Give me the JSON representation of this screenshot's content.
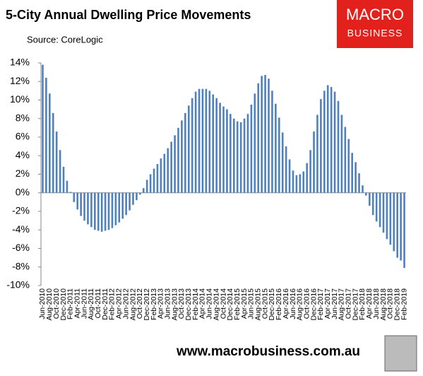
{
  "chart_data": {
    "type": "bar",
    "title": "5-City Annual Dwelling Price Movements",
    "subtitle": "Source: CoreLogic",
    "logo": [
      "MACRO",
      "BUSINESS"
    ],
    "footer": "www.macrobusiness.com.au",
    "color": "#4f81bd",
    "categories": [
      "Jun-2010",
      null,
      "Aug-2010",
      null,
      "Oct-2010",
      null,
      "Dec-2010",
      null,
      "Feb-2011",
      null,
      "Apr-2011",
      null,
      "Jun-2011",
      null,
      "Aug-2011",
      null,
      "Oct-2011",
      null,
      "Dec-2011",
      null,
      "Feb-2012",
      null,
      "Apr-2012",
      null,
      "Jun-2012",
      null,
      "Aug-2012",
      null,
      "Oct-2012",
      null,
      "Dec-2012",
      null,
      "Feb-2013",
      null,
      "Apr-2013",
      null,
      "Jun-2013",
      null,
      "Aug-2013",
      null,
      "Oct-2013",
      null,
      "Dec-2013",
      null,
      "Feb-2014",
      null,
      "Apr-2014",
      null,
      "Jun-2014",
      null,
      "Aug-2014",
      null,
      "Oct-2014",
      null,
      "Dec-2014",
      null,
      "Feb-2015",
      null,
      "Apr-2015",
      null,
      "Jun-2015",
      null,
      "Aug-2015",
      null,
      "Oct-2015",
      null,
      "Dec-2015",
      null,
      "Feb-2016",
      null,
      "Apr-2016",
      null,
      "Jun-2016",
      null,
      "Aug-2016",
      null,
      "Oct-2016",
      null,
      "Dec-2016",
      null,
      "Feb-2017",
      null,
      "Apr-2017",
      null,
      "Jun-2017",
      null,
      "Aug-2017",
      null,
      "Oct-2017",
      null,
      "Dec-2017",
      null,
      "Feb-2018",
      null,
      "Apr-2018",
      null,
      "Jun-2018",
      null,
      "Aug-2018",
      null,
      "Oct-2018",
      null,
      "Dec-2018",
      null,
      "Feb-2019"
    ],
    "values": [
      13.8,
      12.4,
      10.7,
      8.6,
      6.6,
      4.6,
      2.8,
      1.3,
      0.1,
      -1.0,
      -1.8,
      -2.5,
      -3.0,
      -3.4,
      -3.7,
      -4.0,
      -4.1,
      -4.2,
      -4.1,
      -4.0,
      -3.8,
      -3.5,
      -3.2,
      -2.8,
      -2.4,
      -1.9,
      -1.3,
      -0.8,
      -0.2,
      0.5,
      1.4,
      2.0,
      2.6,
      3.1,
      3.7,
      4.2,
      4.8,
      5.5,
      6.2,
      7.0,
      7.8,
      8.6,
      9.4,
      10.2,
      10.9,
      11.2,
      11.2,
      11.2,
      11.0,
      10.6,
      10.2,
      9.7,
      9.3,
      9.0,
      8.5,
      8.0,
      7.7,
      7.6,
      8.0,
      8.5,
      9.5,
      10.7,
      11.8,
      12.6,
      12.7,
      12.3,
      11.0,
      9.6,
      8.1,
      6.5,
      5.0,
      3.6,
      2.4,
      1.9,
      2.0,
      2.3,
      3.2,
      4.6,
      6.6,
      8.4,
      10.1,
      11.0,
      11.6,
      11.4,
      10.9,
      9.9,
      8.4,
      7.1,
      5.8,
      4.3,
      3.3,
      2.1,
      0.8,
      -0.3,
      -1.4,
      -2.4,
      -3.1,
      -3.7,
      -4.3,
      -5.0,
      -5.6,
      -6.3,
      -7.0,
      -7.3,
      -8.1
    ],
    "ylim": [
      -10,
      14
    ],
    "yticks": [
      {
        "value": -10,
        "label": "-10%"
      },
      {
        "value": -8,
        "label": "-8%"
      },
      {
        "value": -6,
        "label": "-6%"
      },
      {
        "value": -4,
        "label": "-4%"
      },
      {
        "value": -2,
        "label": "-2%"
      },
      {
        "value": 0,
        "label": "0%"
      },
      {
        "value": 2,
        "label": "2%"
      },
      {
        "value": 4,
        "label": "4%"
      },
      {
        "value": 6,
        "label": "6%"
      },
      {
        "value": 8,
        "label": "8%"
      },
      {
        "value": 10,
        "label": "10%"
      },
      {
        "value": 12,
        "label": "12%"
      },
      {
        "value": 14,
        "label": "14%"
      }
    ],
    "grid": false
  }
}
